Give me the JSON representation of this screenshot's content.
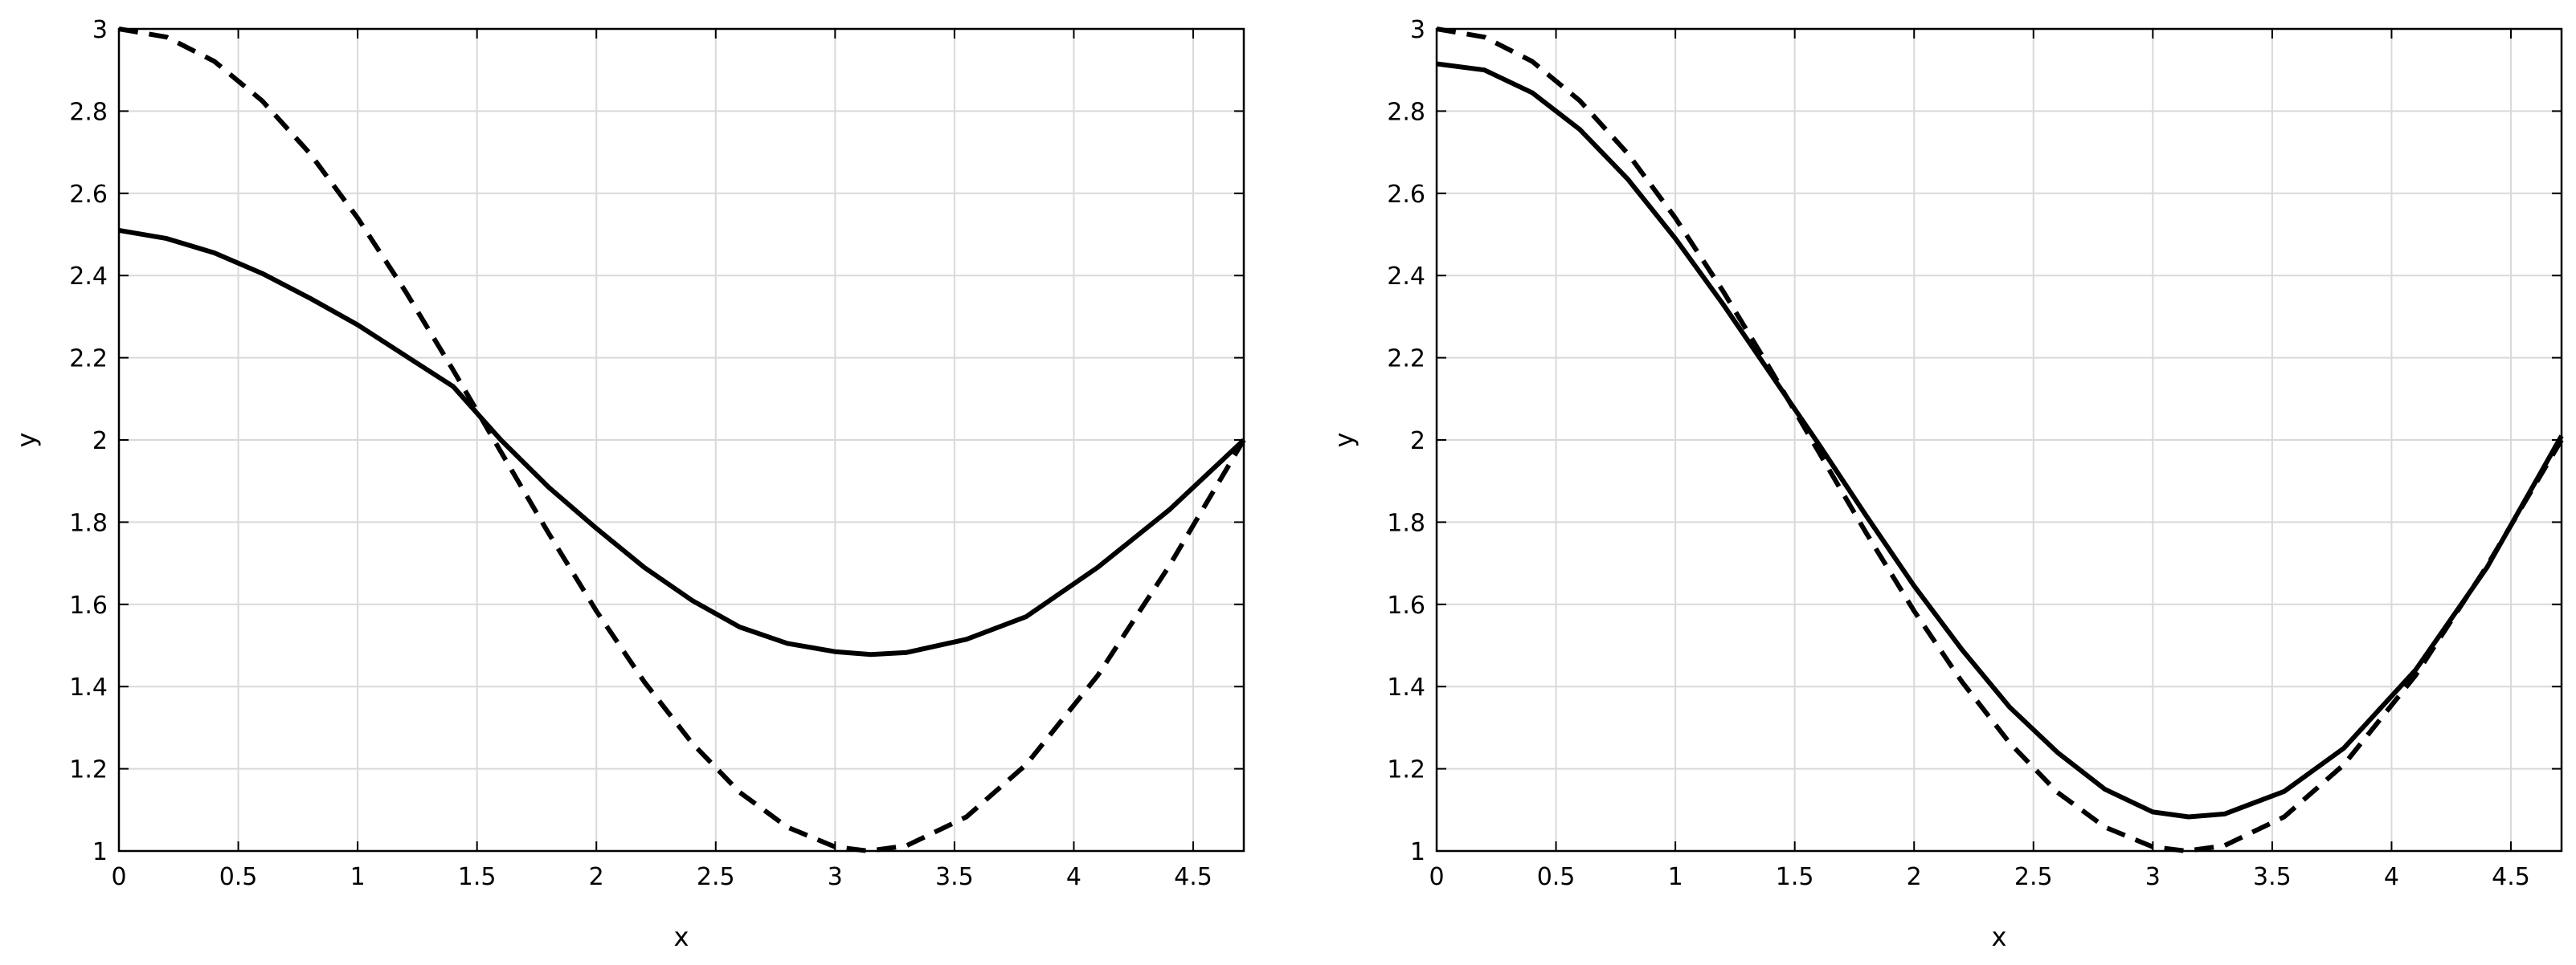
{
  "chart_data": [
    {
      "type": "line",
      "title": "",
      "xlabel": "x",
      "ylabel": "y",
      "xlim": [
        0,
        4.712
      ],
      "ylim": [
        1,
        3
      ],
      "xticks": [
        0,
        0.5,
        1,
        1.5,
        2,
        2.5,
        3,
        3.5,
        4,
        4.5
      ],
      "xtick_labels": [
        "0",
        "0.5",
        "1",
        "1.5",
        "2",
        "2.5",
        "3",
        "3.5",
        "4",
        "4.5"
      ],
      "yticks": [
        1,
        1.2,
        1.4,
        1.6,
        1.8,
        2,
        2.2,
        2.4,
        2.6,
        2.8,
        3
      ],
      "ytick_labels": [
        "1",
        "1.2",
        "1.4",
        "1.6",
        "1.8",
        "2",
        "2.2",
        "2.4",
        "2.6",
        "2.8",
        "3"
      ],
      "grid": true,
      "series": [
        {
          "style": "solid",
          "color": "#000000",
          "x": [
            0,
            0.2,
            0.4,
            0.6,
            0.8,
            1.0,
            1.2,
            1.4,
            1.6,
            1.8,
            2.0,
            2.2,
            2.4,
            2.6,
            2.8,
            3.0,
            3.15,
            3.3,
            3.55,
            3.8,
            4.1,
            4.4,
            4.712
          ],
          "y": [
            2.51,
            2.49,
            2.455,
            2.405,
            2.345,
            2.28,
            2.205,
            2.13,
            2.0,
            1.885,
            1.785,
            1.69,
            1.61,
            1.545,
            1.505,
            1.485,
            1.478,
            1.483,
            1.515,
            1.57,
            1.69,
            1.83,
            2.0
          ]
        },
        {
          "style": "dashed",
          "color": "#000000",
          "x": [
            0,
            0.2,
            0.4,
            0.6,
            0.8,
            1.0,
            1.2,
            1.4,
            1.6,
            1.8,
            2.0,
            2.2,
            2.4,
            2.6,
            2.8,
            3.0,
            3.14,
            3.3,
            3.55,
            3.8,
            4.1,
            4.4,
            4.712
          ],
          "y": [
            3.0,
            2.98,
            2.921,
            2.825,
            2.697,
            2.54,
            2.362,
            2.17,
            1.971,
            1.773,
            1.584,
            1.412,
            1.263,
            1.143,
            1.058,
            1.01,
            1.0,
            1.013,
            1.083,
            1.21,
            1.427,
            1.694,
            2.0
          ]
        }
      ]
    },
    {
      "type": "line",
      "title": "",
      "xlabel": "x",
      "ylabel": "y",
      "xlim": [
        0,
        4.712
      ],
      "ylim": [
        1,
        3
      ],
      "xticks": [
        0,
        0.5,
        1,
        1.5,
        2,
        2.5,
        3,
        3.5,
        4,
        4.5
      ],
      "xtick_labels": [
        "0",
        "0.5",
        "1",
        "1.5",
        "2",
        "2.5",
        "3",
        "3.5",
        "4",
        "4.5"
      ],
      "yticks": [
        1,
        1.2,
        1.4,
        1.6,
        1.8,
        2,
        2.2,
        2.4,
        2.6,
        2.8,
        3
      ],
      "ytick_labels": [
        "1",
        "1.2",
        "1.4",
        "1.6",
        "1.8",
        "2",
        "2.2",
        "2.4",
        "2.6",
        "2.8",
        "3"
      ],
      "grid": true,
      "series": [
        {
          "style": "solid",
          "color": "#000000",
          "x": [
            0,
            0.2,
            0.4,
            0.6,
            0.8,
            1.0,
            1.2,
            1.4,
            1.6,
            1.8,
            2.0,
            2.2,
            2.4,
            2.6,
            2.8,
            3.0,
            3.15,
            3.3,
            3.55,
            3.8,
            4.1,
            4.4,
            4.712
          ],
          "y": [
            2.915,
            2.9,
            2.845,
            2.755,
            2.635,
            2.49,
            2.33,
            2.16,
            1.99,
            1.815,
            1.645,
            1.49,
            1.35,
            1.24,
            1.15,
            1.095,
            1.083,
            1.09,
            1.145,
            1.25,
            1.44,
            1.69,
            2.01
          ]
        },
        {
          "style": "dashed",
          "color": "#000000",
          "x": [
            0,
            0.2,
            0.4,
            0.6,
            0.8,
            1.0,
            1.2,
            1.4,
            1.6,
            1.8,
            2.0,
            2.2,
            2.4,
            2.6,
            2.8,
            3.0,
            3.14,
            3.3,
            3.55,
            3.8,
            4.1,
            4.4,
            4.712
          ],
          "y": [
            3.0,
            2.98,
            2.921,
            2.825,
            2.697,
            2.54,
            2.362,
            2.17,
            1.971,
            1.773,
            1.584,
            1.412,
            1.263,
            1.143,
            1.058,
            1.01,
            1.0,
            1.013,
            1.083,
            1.21,
            1.427,
            1.694,
            2.0
          ]
        }
      ]
    }
  ]
}
